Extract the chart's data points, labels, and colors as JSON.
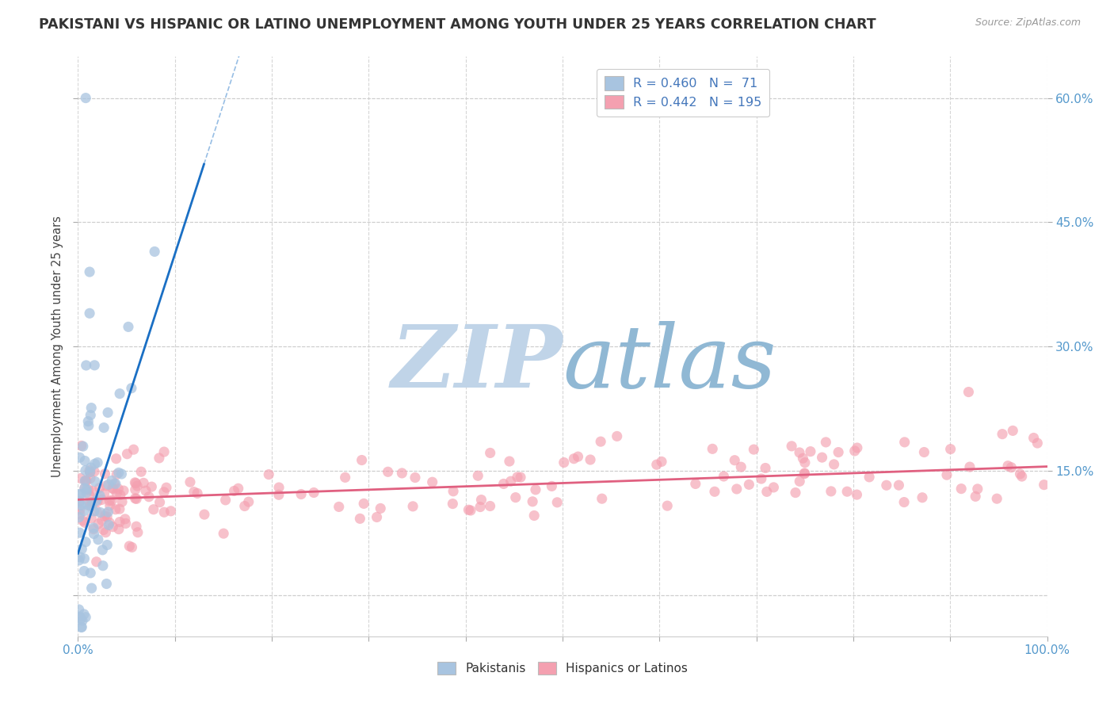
{
  "title": "PAKISTANI VS HISPANIC OR LATINO UNEMPLOYMENT AMONG YOUTH UNDER 25 YEARS CORRELATION CHART",
  "source": "Source: ZipAtlas.com",
  "ylabel": "Unemployment Among Youth under 25 years",
  "xlabel": "",
  "xlim": [
    0.0,
    1.0
  ],
  "ylim": [
    -0.05,
    0.65
  ],
  "legend_r1": "R = 0.460",
  "legend_n1": "N =  71",
  "legend_r2": "R = 0.442",
  "legend_n2": "N = 195",
  "color_pakistani": "#a8c4e0",
  "color_hispanic": "#f4a0b0",
  "color_line_pakistani": "#1a6fc4",
  "color_line_hispanic": "#e06080",
  "watermark_zip": "ZIP",
  "watermark_atlas": "atlas",
  "watermark_color_zip": "#b8cce4",
  "watermark_color_atlas": "#90b8d8",
  "background_color": "#ffffff",
  "grid_color": "#cccccc",
  "title_color": "#333333",
  "source_color": "#999999",
  "axis_label_color": "#5599cc",
  "ylabel_color": "#444444"
}
